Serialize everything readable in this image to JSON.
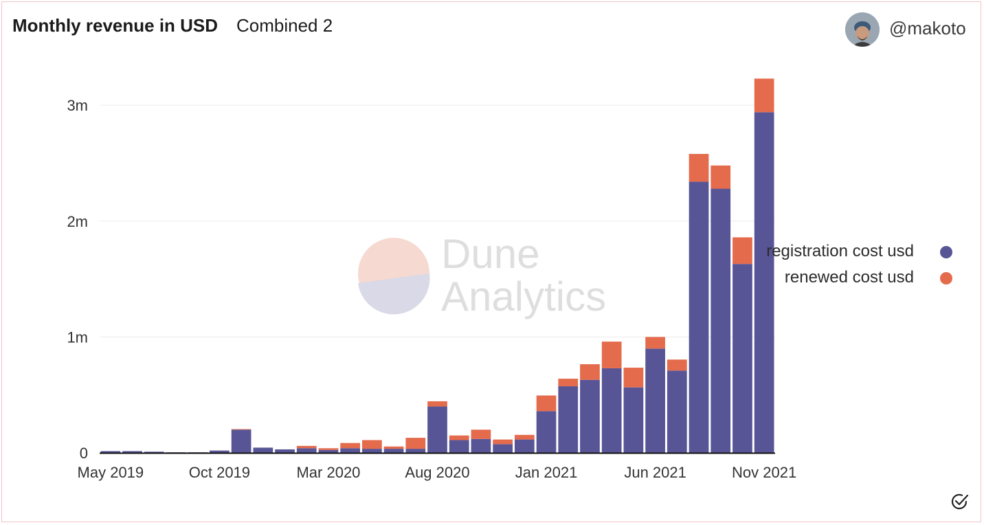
{
  "header": {
    "title": "Monthly revenue in USD",
    "subtitle": "Combined 2",
    "username": "@makoto"
  },
  "legend": {
    "items": [
      {
        "label": "registration cost usd",
        "color": "#585596"
      },
      {
        "label": "renewed cost usd",
        "color": "#e46b4c"
      }
    ]
  },
  "watermark": {
    "line1": "Dune",
    "line2": "Analytics"
  },
  "icons": {
    "avatar": "user-avatar",
    "check": "check-circle-icon"
  },
  "chart_data": {
    "type": "bar",
    "stacked": true,
    "categories": [
      "2019-05",
      "2019-06",
      "2019-07",
      "2019-08",
      "2019-09",
      "2019-10",
      "2019-11",
      "2019-12",
      "2020-01",
      "2020-02",
      "2020-03",
      "2020-04",
      "2020-05",
      "2020-06",
      "2020-07",
      "2020-08",
      "2020-09",
      "2020-10",
      "2020-11",
      "2020-12",
      "2021-01",
      "2021-02",
      "2021-03",
      "2021-04",
      "2021-05",
      "2021-06",
      "2021-07",
      "2021-08",
      "2021-09",
      "2021-10",
      "2021-11"
    ],
    "x_tick_labels": [
      "May 2019",
      "Oct 2019",
      "Mar 2020",
      "Aug 2020",
      "Jan 2021",
      "Jun 2021",
      "Nov 2021"
    ],
    "x_tick_indices": [
      0,
      5,
      10,
      15,
      20,
      25,
      30
    ],
    "series": [
      {
        "name": "registration cost usd",
        "color": "#585596",
        "values": [
          15000,
          15000,
          10000,
          5000,
          5000,
          20000,
          200000,
          45000,
          30000,
          40000,
          25000,
          40000,
          35000,
          35000,
          35000,
          400000,
          110000,
          120000,
          75000,
          115000,
          360000,
          575000,
          630000,
          730000,
          565000,
          900000,
          710000,
          2340000,
          2280000,
          1630000,
          2940000
        ]
      },
      {
        "name": "renewed cost usd",
        "color": "#e46b4c",
        "values": [
          0,
          0,
          0,
          0,
          0,
          0,
          5000,
          0,
          0,
          20000,
          15000,
          45000,
          75000,
          20000,
          95000,
          45000,
          40000,
          80000,
          40000,
          40000,
          135000,
          65000,
          135000,
          230000,
          170000,
          100000,
          95000,
          240000,
          200000,
          230000,
          290000
        ]
      }
    ],
    "y_ticks": [
      0,
      1000000,
      2000000,
      3000000
    ],
    "y_tick_labels": [
      "0",
      "1m",
      "2m",
      "3m"
    ],
    "ylim": [
      0,
      3250000
    ],
    "grid": true,
    "legend_position": "right"
  }
}
